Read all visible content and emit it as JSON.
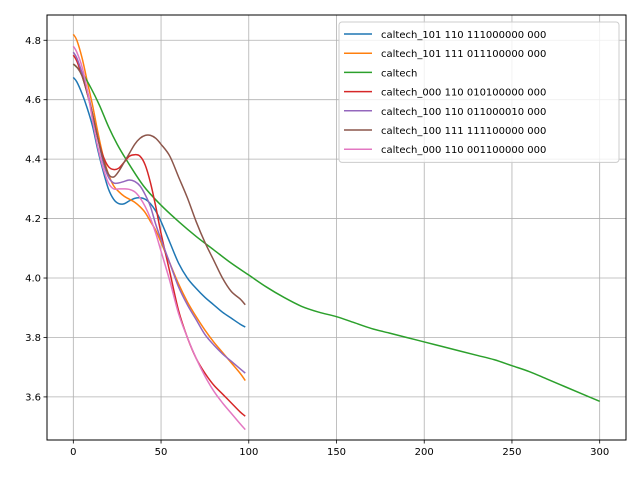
{
  "chart_data": {
    "type": "line",
    "title": "",
    "xlabel": "",
    "ylabel": "",
    "xlim": [
      -15,
      315
    ],
    "ylim": [
      3.455,
      4.885
    ],
    "xticks": [
      0,
      50,
      100,
      150,
      200,
      250,
      300
    ],
    "yticks": [
      3.6,
      3.8,
      4.0,
      4.2,
      4.4,
      4.6,
      4.8
    ],
    "grid": true,
    "legend_position": "top-right",
    "series": [
      {
        "name": "caltech_101 110 111000000 000",
        "color": "#1f77b4",
        "x": [
          0,
          2,
          5,
          8,
          11,
          14,
          17,
          20,
          23,
          26,
          29,
          32,
          35,
          38,
          41,
          44,
          47,
          50,
          55,
          60,
          65,
          70,
          75,
          80,
          85,
          90,
          95,
          98
        ],
        "y": [
          4.675,
          4.66,
          4.62,
          4.57,
          4.51,
          4.43,
          4.36,
          4.3,
          4.265,
          4.25,
          4.25,
          4.26,
          4.268,
          4.27,
          4.265,
          4.25,
          4.225,
          4.19,
          4.12,
          4.05,
          4.0,
          3.965,
          3.935,
          3.91,
          3.885,
          3.865,
          3.845,
          3.835
        ]
      },
      {
        "name": "caltech_101 111 011100000 000",
        "color": "#ff7f0e",
        "x": [
          0,
          2,
          5,
          8,
          11,
          14,
          17,
          20,
          23,
          26,
          29,
          32,
          35,
          38,
          41,
          44,
          47,
          50,
          55,
          60,
          65,
          70,
          75,
          80,
          85,
          90,
          95,
          98
        ],
        "y": [
          4.82,
          4.8,
          4.74,
          4.66,
          4.58,
          4.49,
          4.41,
          4.35,
          4.31,
          4.29,
          4.275,
          4.265,
          4.255,
          4.24,
          4.22,
          4.19,
          4.16,
          4.12,
          4.05,
          3.98,
          3.92,
          3.87,
          3.825,
          3.785,
          3.75,
          3.715,
          3.68,
          3.655
        ]
      },
      {
        "name": "caltech",
        "color": "#2ca02c",
        "x": [
          0,
          5,
          10,
          15,
          20,
          25,
          30,
          40,
          50,
          60,
          70,
          80,
          90,
          100,
          110,
          120,
          130,
          140,
          150,
          160,
          170,
          180,
          190,
          200,
          210,
          220,
          230,
          240,
          250,
          260,
          270,
          280,
          290,
          300
        ],
        "y": [
          4.72,
          4.69,
          4.64,
          4.58,
          4.51,
          4.45,
          4.4,
          4.31,
          4.245,
          4.19,
          4.14,
          4.095,
          4.05,
          4.01,
          3.97,
          3.935,
          3.905,
          3.885,
          3.87,
          3.85,
          3.83,
          3.815,
          3.8,
          3.785,
          3.77,
          3.755,
          3.74,
          3.725,
          3.705,
          3.685,
          3.66,
          3.635,
          3.61,
          3.585
        ]
      },
      {
        "name": "caltech_000 110 010100000 000",
        "color": "#d62728",
        "x": [
          0,
          2,
          5,
          8,
          11,
          14,
          17,
          20,
          23,
          26,
          29,
          32,
          35,
          38,
          41,
          44,
          47,
          50,
          55,
          60,
          65,
          70,
          75,
          80,
          85,
          90,
          95,
          98
        ],
        "y": [
          4.75,
          4.73,
          4.68,
          4.62,
          4.55,
          4.47,
          4.41,
          4.375,
          4.365,
          4.37,
          4.39,
          4.41,
          4.415,
          4.41,
          4.38,
          4.32,
          4.24,
          4.15,
          4.02,
          3.89,
          3.8,
          3.73,
          3.68,
          3.64,
          3.61,
          3.58,
          3.55,
          3.535
        ]
      },
      {
        "name": "caltech_100 110 011000010 000",
        "color": "#9467bd",
        "x": [
          0,
          2,
          5,
          8,
          11,
          14,
          17,
          20,
          23,
          26,
          29,
          32,
          35,
          38,
          41,
          44,
          47,
          50,
          55,
          60,
          65,
          70,
          75,
          80,
          85,
          90,
          95,
          98
        ],
        "y": [
          4.76,
          4.74,
          4.69,
          4.63,
          4.55,
          4.47,
          4.39,
          4.34,
          4.32,
          4.32,
          4.325,
          4.33,
          4.325,
          4.31,
          4.28,
          4.24,
          4.18,
          4.13,
          4.05,
          3.97,
          3.91,
          3.86,
          3.81,
          3.775,
          3.745,
          3.72,
          3.695,
          3.68
        ]
      },
      {
        "name": "caltech_100 111 111100000 000",
        "color": "#8c564b",
        "x": [
          0,
          2,
          5,
          8,
          11,
          14,
          17,
          20,
          23,
          26,
          29,
          32,
          35,
          38,
          41,
          44,
          47,
          50,
          55,
          60,
          65,
          70,
          75,
          80,
          85,
          90,
          95,
          98
        ],
        "y": [
          4.72,
          4.71,
          4.68,
          4.62,
          4.55,
          4.47,
          4.4,
          4.35,
          4.34,
          4.36,
          4.39,
          4.42,
          4.45,
          4.47,
          4.48,
          4.48,
          4.47,
          4.45,
          4.41,
          4.34,
          4.27,
          4.19,
          4.12,
          4.06,
          4.0,
          3.955,
          3.93,
          3.91
        ]
      },
      {
        "name": "caltech_000 110 001100000 000",
        "color": "#e377c2",
        "x": [
          0,
          2,
          5,
          8,
          11,
          14,
          17,
          20,
          23,
          26,
          29,
          32,
          35,
          38,
          41,
          44,
          47,
          50,
          55,
          60,
          65,
          70,
          75,
          80,
          85,
          90,
          95,
          98
        ],
        "y": [
          4.78,
          4.76,
          4.71,
          4.63,
          4.53,
          4.44,
          4.37,
          4.32,
          4.3,
          4.3,
          4.3,
          4.298,
          4.29,
          4.27,
          4.24,
          4.2,
          4.15,
          4.09,
          3.99,
          3.88,
          3.8,
          3.73,
          3.67,
          3.62,
          3.58,
          3.545,
          3.51,
          3.49
        ]
      }
    ]
  }
}
